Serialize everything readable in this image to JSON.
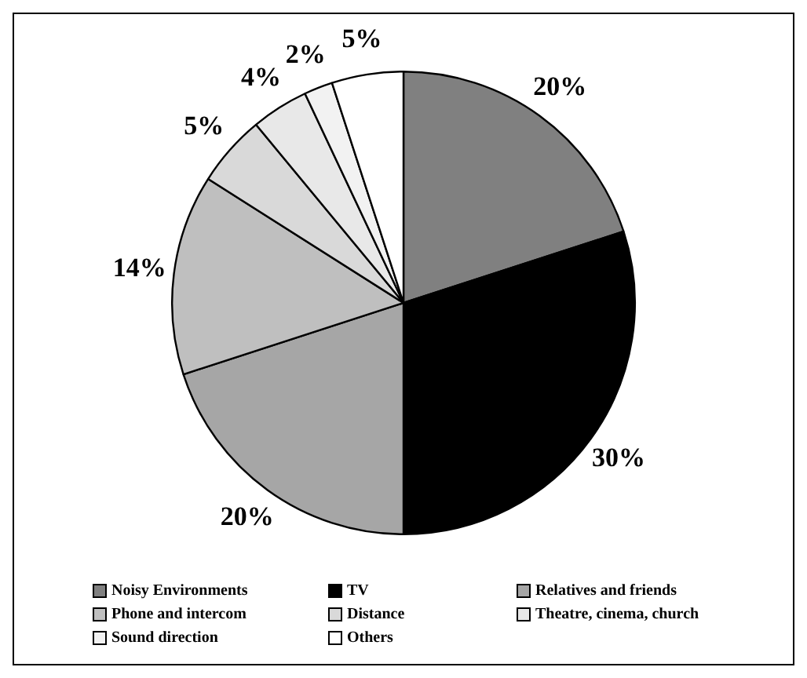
{
  "chart_data": {
    "type": "pie",
    "categories": [
      "Noisy Environments",
      "TV",
      "Relatives and friends",
      "Phone and intercom",
      "Distance",
      "Theatre, cinema, church",
      "Sound direction",
      "Others"
    ],
    "values": [
      20,
      30,
      20,
      14,
      5,
      4,
      2,
      5
    ],
    "colors": [
      "#808080",
      "#000000",
      "#a6a6a6",
      "#bfbfbf",
      "#d9d9d9",
      "#e8e8e8",
      "#f2f2f2",
      "#ffffff"
    ],
    "value_labels": [
      "20%",
      "30%",
      "20%",
      "14%",
      "5%",
      "4%",
      "2%",
      "5%"
    ],
    "legend": "bottom"
  }
}
